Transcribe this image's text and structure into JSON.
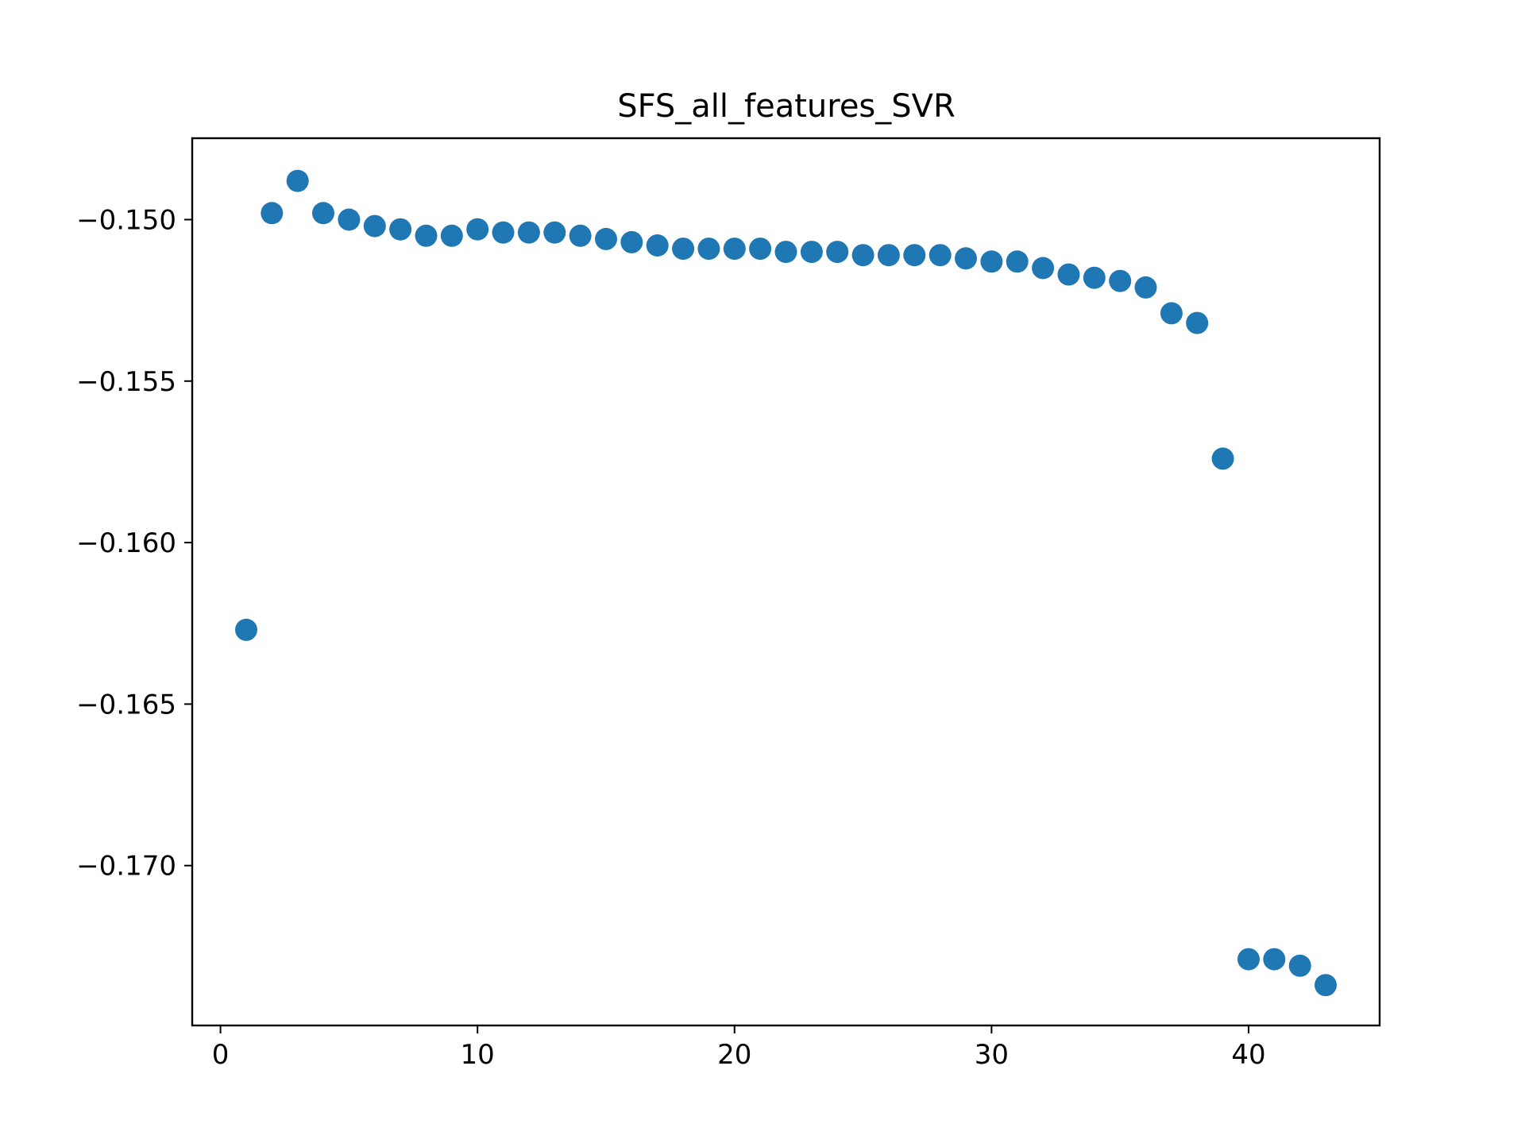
{
  "colors": {
    "marker": "#1f77b4",
    "axes": "#000000",
    "background": "#ffffff"
  },
  "chart_data": {
    "type": "scatter",
    "title": "SFS_all_features_SVR",
    "xlabel": "",
    "ylabel": "",
    "xlim": [
      -1.1,
      45.1
    ],
    "ylim": [
      -0.17495,
      -0.14748
    ],
    "x_ticks": [
      0,
      10,
      20,
      30,
      40
    ],
    "x_tick_labels": [
      "0",
      "10",
      "20",
      "30",
      "40"
    ],
    "y_ticks": [
      -0.15,
      -0.155,
      -0.16,
      -0.165,
      -0.17
    ],
    "y_tick_labels": [
      "−0.150",
      "−0.155",
      "−0.160",
      "−0.165",
      "−0.170"
    ],
    "grid": false,
    "legend": false,
    "series": [
      {
        "color": "#1f77b4",
        "x": [
          1,
          2,
          3,
          4,
          5,
          6,
          7,
          8,
          9,
          10,
          11,
          12,
          13,
          14,
          15,
          16,
          17,
          18,
          19,
          20,
          21,
          22,
          23,
          24,
          25,
          26,
          27,
          28,
          29,
          30,
          31,
          32,
          33,
          34,
          35,
          36,
          37,
          38,
          39,
          40,
          41,
          42,
          43
        ],
        "y": [
          -0.1627,
          -0.1498,
          -0.1488,
          -0.1498,
          -0.15,
          -0.1502,
          -0.1503,
          -0.1505,
          -0.1505,
          -0.1503,
          -0.1504,
          -0.1504,
          -0.1504,
          -0.1505,
          -0.1506,
          -0.1507,
          -0.1508,
          -0.1509,
          -0.1509,
          -0.1509,
          -0.1509,
          -0.151,
          -0.151,
          -0.151,
          -0.1511,
          -0.1511,
          -0.1511,
          -0.1511,
          -0.1512,
          -0.1513,
          -0.1513,
          -0.1515,
          -0.1517,
          -0.1518,
          -0.1519,
          -0.1521,
          -0.1529,
          -0.1532,
          -0.1574,
          -0.1729,
          -0.1729,
          -0.1731,
          -0.1737
        ]
      }
    ]
  }
}
